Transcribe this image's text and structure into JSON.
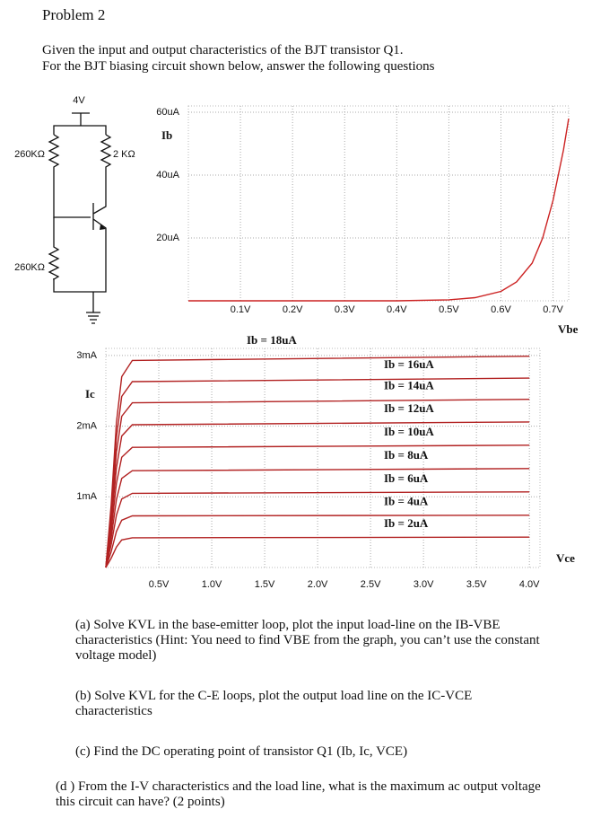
{
  "header": {
    "title": "Problem 2",
    "intro": [
      "Given the input and output characteristics of the BJT transistor Q1.",
      "For the BJT biasing circuit shown below, answer the following questions"
    ]
  },
  "circuit": {
    "supply": "4V",
    "rb1": "260KΩ",
    "rc": "2 KΩ",
    "rb2": "260KΩ"
  },
  "chart_data": [
    {
      "type": "line",
      "ylabel": "Ib",
      "xlabel": "Vbe",
      "x": [
        0,
        0.1,
        0.2,
        0.3,
        0.4,
        0.5,
        0.55,
        0.6,
        0.63,
        0.66,
        0.68,
        0.7,
        0.72,
        0.73
      ],
      "series": [
        {
          "name": null,
          "color": "#cc2222",
          "values": [
            0,
            0,
            0,
            0,
            0,
            0.3,
            1,
            3,
            6,
            12,
            20,
            32,
            48,
            58
          ]
        }
      ],
      "xlim": [
        0,
        0.73
      ],
      "ylim": [
        0,
        62
      ],
      "xticks": [
        {
          "value": 0.1,
          "label": "0.1V"
        },
        {
          "value": 0.2,
          "label": "0.2V"
        },
        {
          "value": 0.3,
          "label": "0.3V"
        },
        {
          "value": 0.4,
          "label": "0.4V"
        },
        {
          "value": 0.5,
          "label": "0.5V"
        },
        {
          "value": 0.6,
          "label": "0.6V"
        },
        {
          "value": 0.7,
          "label": "0.7V"
        }
      ],
      "yticks": [
        {
          "value": 20,
          "label": "20uA"
        },
        {
          "value": 40,
          "label": "40uA"
        },
        {
          "value": 60,
          "label": "60uA"
        }
      ],
      "grid": true
    },
    {
      "type": "line",
      "ylabel": "Ic",
      "xlabel": "Vce",
      "x": [
        0,
        0.05,
        0.1,
        0.15,
        0.25,
        4.0
      ],
      "series": [
        {
          "name": "Ib = 18uA",
          "color": "#b22222",
          "values": [
            0,
            0.88,
            2.05,
            2.7,
            2.93,
            2.99
          ]
        },
        {
          "name": "Ib = 16uA",
          "color": "#b22222",
          "values": [
            0,
            0.79,
            1.84,
            2.42,
            2.63,
            2.68
          ]
        },
        {
          "name": "Ib = 14uA",
          "color": "#b22222",
          "values": [
            0,
            0.7,
            1.63,
            2.14,
            2.33,
            2.38
          ]
        },
        {
          "name": "Ib = 12uA",
          "color": "#b22222",
          "values": [
            0,
            0.61,
            1.41,
            1.86,
            2.02,
            2.06
          ]
        },
        {
          "name": "Ib = 10uA",
          "color": "#b22222",
          "values": [
            0,
            0.51,
            1.19,
            1.56,
            1.7,
            1.73
          ]
        },
        {
          "name": "Ib = 8uA",
          "color": "#b22222",
          "values": [
            0,
            0.41,
            0.96,
            1.26,
            1.37,
            1.4
          ]
        },
        {
          "name": "Ib = 6uA",
          "color": "#b22222",
          "values": [
            0,
            0.32,
            0.74,
            0.97,
            1.05,
            1.07
          ]
        },
        {
          "name": "Ib = 4uA",
          "color": "#b22222",
          "values": [
            0,
            0.22,
            0.51,
            0.67,
            0.73,
            0.74
          ]
        },
        {
          "name": "Ib = 2uA",
          "color": "#b22222",
          "values": [
            0,
            0.13,
            0.29,
            0.39,
            0.42,
            0.43
          ]
        }
      ],
      "xlim": [
        0,
        4.1
      ],
      "ylim": [
        0,
        3.1
      ],
      "xticks": [
        {
          "value": 0.5,
          "label": "0.5V"
        },
        {
          "value": 1.0,
          "label": "1.0V"
        },
        {
          "value": 1.5,
          "label": "1.5V"
        },
        {
          "value": 2.0,
          "label": "2.0V"
        },
        {
          "value": 2.5,
          "label": "2.5V"
        },
        {
          "value": 3.0,
          "label": "3.0V"
        },
        {
          "value": 3.5,
          "label": "3.5V"
        },
        {
          "value": 4.0,
          "label": "4.0V"
        }
      ],
      "yticks": [
        {
          "value": 1,
          "label": "1mA"
        },
        {
          "value": 2,
          "label": "2mA"
        },
        {
          "value": 3,
          "label": "3mA"
        }
      ],
      "grid": true
    }
  ],
  "questions": [
    "(a) Solve KVL in the base-emitter loop, plot the input load-line on the IB-VBE characteristics (Hint: You need to find VBE from the graph, you can’t use the constant voltage model)",
    "(b) Solve KVL for the C-E loops, plot the output load line on the IC-VCE characteristics",
    "(c) Find the DC operating point of transistor Q1 (Ib, Ic, VCE)",
    "(d ) From the I-V characteristics and the load line, what is the maximum ac output voltage this circuit can have? (2 points)"
  ]
}
